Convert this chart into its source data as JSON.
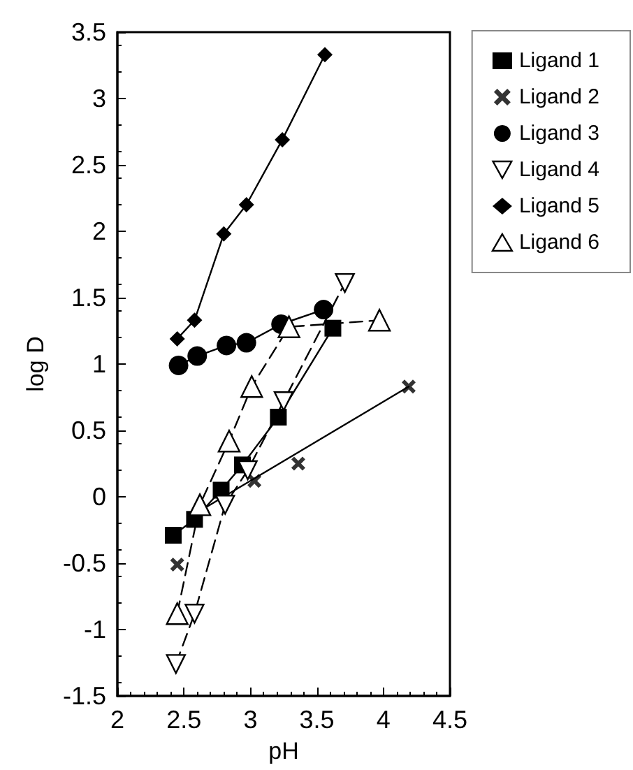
{
  "chart_data": {
    "type": "line",
    "xlabel": "pH",
    "ylabel": "log D",
    "xlim": [
      2,
      4.5
    ],
    "xticks": [
      2,
      2.5,
      3,
      3.5,
      4,
      4.5
    ],
    "ylim": [
      -1.5,
      3.5
    ],
    "yticks": [
      -1.5,
      -1,
      -0.5,
      0,
      0.5,
      1,
      1.5,
      2,
      2.5,
      3,
      3.5
    ],
    "grid": false,
    "legend": "top right",
    "series": [
      {
        "name": "Ligand 1",
        "color": "#000000",
        "marker": "square",
        "line_style": "solid",
        "x": [
          2.42,
          2.58,
          2.78,
          2.94,
          3.21,
          3.62
        ],
        "values": [
          -0.29,
          -0.17,
          0.05,
          0.24,
          0.6,
          1.27
        ]
      },
      {
        "name": "Ligand 2",
        "type": "scatter",
        "color": "#000000",
        "marker": "cross",
        "x": [
          2.45,
          3.03,
          3.36,
          4.19
        ],
        "values": [
          -0.51,
          0.12,
          0.25,
          0.83
        ]
      },
      {
        "name": "Ligand 3",
        "color": "#000000",
        "marker": "circle",
        "line_style": "solid",
        "x": [
          2.46,
          2.6,
          2.82,
          2.97,
          3.23,
          3.55
        ],
        "values": [
          0.99,
          1.06,
          1.14,
          1.16,
          1.3,
          1.41
        ]
      },
      {
        "name": "Ligand 4",
        "color": "#000000",
        "marker": "triangle-down",
        "line_style": "dashed",
        "x": [
          2.44,
          2.58,
          2.81,
          2.98,
          3.25,
          3.71
        ],
        "values": [
          -1.26,
          -0.88,
          -0.06,
          0.2,
          0.72,
          1.61
        ]
      },
      {
        "name": "Ligand 5",
        "color": "#000000",
        "marker": "diamond",
        "line_style": "solid",
        "x": [
          2.45,
          2.58,
          2.8,
          2.97,
          3.24,
          3.56
        ],
        "values": [
          1.19,
          1.33,
          1.98,
          2.2,
          2.69,
          3.33
        ]
      },
      {
        "name": "Ligand 6",
        "color": "#000000",
        "marker": "triangle",
        "line_style": "dashed",
        "x": [
          2.45,
          2.62,
          2.84,
          3.01,
          3.29,
          3.97
        ],
        "values": [
          -0.88,
          -0.06,
          0.42,
          0.83,
          1.28,
          1.33
        ]
      },
      {
        "type": "line",
        "color": "#000000",
        "marker": "none",
        "line_style": "solid",
        "x": [
          2.58,
          4.19
        ],
        "values": [
          -0.13,
          0.83
        ]
      }
    ]
  }
}
